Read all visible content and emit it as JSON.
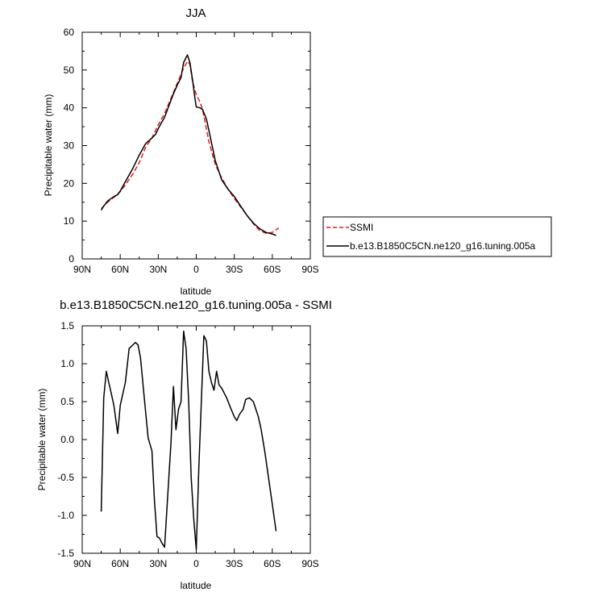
{
  "chart_data": [
    {
      "type": "line",
      "title": "JJA",
      "xlabel": "latitude",
      "ylabel": "Precipitable water (mm)",
      "xlim": [
        90,
        -90
      ],
      "ylim": [
        0,
        60
      ],
      "x_ticks": [
        90,
        60,
        30,
        0,
        -30,
        -60,
        -90
      ],
      "x_tick_labels": [
        "90N",
        "60N",
        "30N",
        "0",
        "30S",
        "60S",
        "90S"
      ],
      "y_ticks": [
        0,
        10,
        20,
        30,
        40,
        50,
        60
      ],
      "y_tick_labels": [
        "0",
        "10",
        "20",
        "30",
        "40",
        "50",
        "60"
      ],
      "legend": {
        "placement": "right"
      },
      "series": [
        {
          "name": "SSMI",
          "color": "#e41a1c",
          "dash": "dashed",
          "x": [
            75,
            70,
            65,
            60,
            55,
            50,
            45,
            40,
            35,
            30,
            25,
            20,
            15,
            10,
            7,
            5,
            3,
            0,
            -3,
            -5,
            -10,
            -15,
            -20,
            -25,
            -30,
            -35,
            -40,
            -45,
            -50,
            -55,
            -60,
            -65
          ],
          "y": [
            13.3,
            15.0,
            16.3,
            17.8,
            20.0,
            22.5,
            25.5,
            29.5,
            32.0,
            35.5,
            38.5,
            42.5,
            46.5,
            50.5,
            52.3,
            51.5,
            47.0,
            43.5,
            41.5,
            39.5,
            31.0,
            25.0,
            21.5,
            18.5,
            16.0,
            13.8,
            11.5,
            9.3,
            7.5,
            6.8,
            7.0,
            8.2
          ]
        },
        {
          "name": "b.e13.B1850C5CN.ne120_g16.tuning.005a",
          "color": "#000000",
          "dash": "solid",
          "x": [
            75,
            73,
            70,
            65,
            62,
            60,
            55,
            50,
            45,
            40,
            35,
            32,
            30,
            25,
            20,
            18,
            15,
            12,
            10,
            7,
            5,
            3,
            1,
            0,
            -3,
            -5,
            -8,
            -10,
            -15,
            -20,
            -25,
            -30,
            -35,
            -40,
            -45,
            -50,
            -55,
            -60,
            -63
          ],
          "y": [
            12.9,
            14.0,
            15.3,
            16.5,
            17.0,
            18.0,
            21.0,
            24.0,
            27.5,
            30.5,
            32.0,
            33.0,
            34.5,
            37.5,
            42.0,
            43.7,
            46.0,
            48.0,
            52.0,
            54.0,
            52.0,
            47.5,
            42.5,
            40.2,
            40.0,
            39.5,
            37.0,
            34.0,
            26.0,
            21.0,
            18.5,
            16.5,
            14.0,
            11.5,
            9.5,
            8.0,
            7.0,
            6.6,
            6.2
          ]
        }
      ]
    },
    {
      "type": "line",
      "title": "b.e13.B1850C5CN.ne120_g16.tuning.005a - SSMI",
      "xlabel": "latitude",
      "ylabel": "Precipitable water (mm)",
      "xlim": [
        90,
        -90
      ],
      "ylim": [
        -1.5,
        1.5
      ],
      "x_ticks": [
        90,
        60,
        30,
        0,
        -30,
        -60,
        -90
      ],
      "x_tick_labels": [
        "90N",
        "60N",
        "30N",
        "0",
        "30S",
        "60S",
        "90S"
      ],
      "y_ticks": [
        -1.5,
        -1.0,
        -0.5,
        0.0,
        0.5,
        1.0,
        1.5
      ],
      "y_tick_labels": [
        "-1.5",
        "-1.0",
        "-0.5",
        "0.0",
        "0.5",
        "1.0",
        "1.5"
      ],
      "series": [
        {
          "color": "#000000",
          "dash": "solid",
          "x": [
            75,
            73,
            71,
            69,
            67,
            65,
            62,
            60,
            58,
            56,
            53,
            50,
            48,
            46,
            44,
            41,
            38,
            35,
            33,
            31,
            29,
            27,
            25,
            22,
            20,
            18,
            16,
            14,
            12,
            10,
            8,
            6,
            4,
            2,
            0,
            -2,
            -4,
            -6,
            -8,
            -10,
            -12,
            -14,
            -16,
            -18,
            -20,
            -24,
            -27,
            -30,
            -32,
            -34,
            -37,
            -39,
            -42,
            -45,
            -47,
            -49,
            -51,
            -54,
            -57,
            -60,
            -63
          ],
          "y": [
            -0.95,
            0.55,
            0.9,
            0.75,
            0.6,
            0.45,
            0.08,
            0.45,
            0.6,
            0.75,
            1.2,
            1.25,
            1.28,
            1.25,
            1.08,
            0.55,
            0.02,
            -0.15,
            -0.8,
            -1.28,
            -1.3,
            -1.37,
            -1.42,
            -0.6,
            -0.05,
            0.7,
            0.13,
            0.4,
            0.5,
            1.43,
            1.2,
            0.5,
            -0.5,
            -1.05,
            -1.45,
            -0.4,
            0.5,
            1.37,
            1.3,
            0.9,
            0.75,
            0.65,
            0.9,
            0.72,
            0.68,
            0.55,
            0.42,
            0.3,
            0.25,
            0.33,
            0.4,
            0.53,
            0.55,
            0.5,
            0.4,
            0.3,
            0.15,
            -0.15,
            -0.5,
            -0.85,
            -1.21
          ]
        }
      ]
    }
  ]
}
